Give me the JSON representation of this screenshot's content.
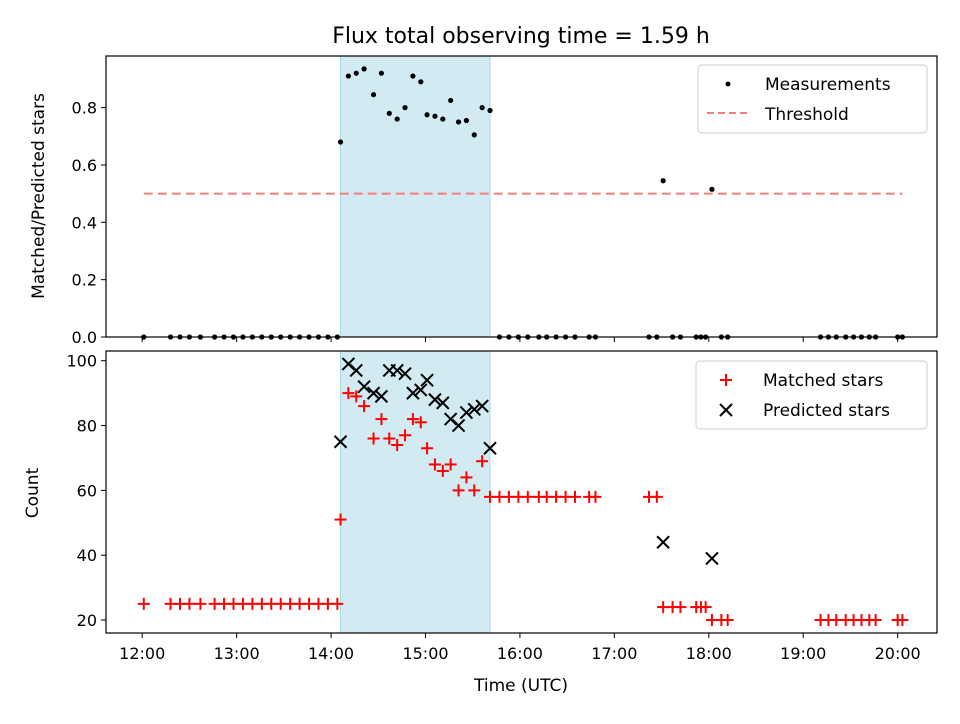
{
  "chart_data": [
    {
      "type": "scatter",
      "title": "Flux total observing time = 1.59 h",
      "xlabel": "",
      "ylabel": "Matched/Predicted stars",
      "xlim": [
        "11:37",
        "20:25"
      ],
      "ylim": [
        0.0,
        0.98
      ],
      "yticks": [
        0.0,
        0.2,
        0.4,
        0.6,
        0.8
      ],
      "ytick_labels": [
        "0.0",
        "0.2",
        "0.4",
        "0.6",
        "0.8"
      ],
      "grid": false,
      "legend_position": "upper right",
      "shaded_region": {
        "x_start": "14:06",
        "x_end": "15:41",
        "color": "#add8e6"
      },
      "series": [
        {
          "name": "Measurements",
          "marker": "dot",
          "color": "#000000",
          "points": [
            {
              "x": "12:01",
              "y": 0
            },
            {
              "x": "12:18",
              "y": 0
            },
            {
              "x": "12:24",
              "y": 0
            },
            {
              "x": "12:30",
              "y": 0
            },
            {
              "x": "12:37",
              "y": 0
            },
            {
              "x": "12:46",
              "y": 0
            },
            {
              "x": "12:52",
              "y": 0
            },
            {
              "x": "12:58",
              "y": 0
            },
            {
              "x": "13:04",
              "y": 0
            },
            {
              "x": "13:10",
              "y": 0
            },
            {
              "x": "13:16",
              "y": 0
            },
            {
              "x": "13:22",
              "y": 0
            },
            {
              "x": "13:28",
              "y": 0
            },
            {
              "x": "13:34",
              "y": 0
            },
            {
              "x": "13:40",
              "y": 0
            },
            {
              "x": "13:46",
              "y": 0
            },
            {
              "x": "13:52",
              "y": 0
            },
            {
              "x": "13:58",
              "y": 0
            },
            {
              "x": "14:04",
              "y": 0
            },
            {
              "x": "14:06",
              "y": 0.68
            },
            {
              "x": "14:11",
              "y": 0.91
            },
            {
              "x": "14:16",
              "y": 0.92
            },
            {
              "x": "14:21",
              "y": 0.935
            },
            {
              "x": "14:27",
              "y": 0.845
            },
            {
              "x": "14:32",
              "y": 0.92
            },
            {
              "x": "14:37",
              "y": 0.78
            },
            {
              "x": "14:42",
              "y": 0.76
            },
            {
              "x": "14:47",
              "y": 0.8
            },
            {
              "x": "14:52",
              "y": 0.91
            },
            {
              "x": "14:57",
              "y": 0.89
            },
            {
              "x": "15:01",
              "y": 0.775
            },
            {
              "x": "15:06",
              "y": 0.77
            },
            {
              "x": "15:11",
              "y": 0.76
            },
            {
              "x": "15:16",
              "y": 0.825
            },
            {
              "x": "15:21",
              "y": 0.75
            },
            {
              "x": "15:26",
              "y": 0.755
            },
            {
              "x": "15:31",
              "y": 0.705
            },
            {
              "x": "15:36",
              "y": 0.8
            },
            {
              "x": "15:41",
              "y": 0.79
            },
            {
              "x": "15:47",
              "y": 0
            },
            {
              "x": "15:53",
              "y": 0
            },
            {
              "x": "15:59",
              "y": 0
            },
            {
              "x": "16:05",
              "y": 0
            },
            {
              "x": "16:12",
              "y": 0
            },
            {
              "x": "16:17",
              "y": 0
            },
            {
              "x": "16:23",
              "y": 0
            },
            {
              "x": "16:29",
              "y": 0
            },
            {
              "x": "16:35",
              "y": 0
            },
            {
              "x": "16:44",
              "y": 0
            },
            {
              "x": "16:48",
              "y": 0
            },
            {
              "x": "17:22",
              "y": 0
            },
            {
              "x": "17:27",
              "y": 0
            },
            {
              "x": "17:37",
              "y": 0
            },
            {
              "x": "17:42",
              "y": 0
            },
            {
              "x": "17:52",
              "y": 0
            },
            {
              "x": "17:55",
              "y": 0
            },
            {
              "x": "17:58",
              "y": 0
            },
            {
              "x": "18:08",
              "y": 0
            },
            {
              "x": "18:12",
              "y": 0
            },
            {
              "x": "17:31",
              "y": 0.545
            },
            {
              "x": "18:02",
              "y": 0.515
            },
            {
              "x": "19:11",
              "y": 0
            },
            {
              "x": "19:16",
              "y": 0
            },
            {
              "x": "19:21",
              "y": 0
            },
            {
              "x": "19:27",
              "y": 0
            },
            {
              "x": "19:32",
              "y": 0
            },
            {
              "x": "19:37",
              "y": 0
            },
            {
              "x": "19:42",
              "y": 0
            },
            {
              "x": "19:46",
              "y": 0
            },
            {
              "x": "20:00",
              "y": 0
            },
            {
              "x": "20:03",
              "y": 0
            }
          ]
        },
        {
          "name": "Threshold",
          "marker": "dashed-line",
          "color": "#f08080",
          "points": [
            {
              "x": "12:01",
              "y": 0.5
            },
            {
              "x": "20:03",
              "y": 0.5
            }
          ]
        }
      ]
    },
    {
      "type": "scatter",
      "title": "",
      "xlabel": "Time (UTC)",
      "ylabel": "Count",
      "xlim": [
        "11:37",
        "20:25"
      ],
      "ylim": [
        16,
        103
      ],
      "yticks": [
        20,
        40,
        60,
        80,
        100
      ],
      "ytick_labels": [
        "20",
        "40",
        "60",
        "80",
        "100"
      ],
      "xticks": [
        "12:00",
        "13:00",
        "14:00",
        "15:00",
        "16:00",
        "17:00",
        "18:00",
        "19:00",
        "20:00"
      ],
      "grid": false,
      "legend_position": "upper right",
      "shaded_region": {
        "x_start": "14:06",
        "x_end": "15:41",
        "color": "#add8e6"
      },
      "series": [
        {
          "name": "Matched stars",
          "marker": "plus",
          "color": "#ff0000",
          "points": [
            {
              "x": "12:01",
              "y": 25
            },
            {
              "x": "12:18",
              "y": 25
            },
            {
              "x": "12:24",
              "y": 25
            },
            {
              "x": "12:30",
              "y": 25
            },
            {
              "x": "12:37",
              "y": 25
            },
            {
              "x": "12:46",
              "y": 25
            },
            {
              "x": "12:52",
              "y": 25
            },
            {
              "x": "12:58",
              "y": 25
            },
            {
              "x": "13:04",
              "y": 25
            },
            {
              "x": "13:10",
              "y": 25
            },
            {
              "x": "13:16",
              "y": 25
            },
            {
              "x": "13:22",
              "y": 25
            },
            {
              "x": "13:28",
              "y": 25
            },
            {
              "x": "13:34",
              "y": 25
            },
            {
              "x": "13:40",
              "y": 25
            },
            {
              "x": "13:46",
              "y": 25
            },
            {
              "x": "13:52",
              "y": 25
            },
            {
              "x": "13:58",
              "y": 25
            },
            {
              "x": "14:04",
              "y": 25
            },
            {
              "x": "14:06",
              "y": 51
            },
            {
              "x": "14:11",
              "y": 90
            },
            {
              "x": "14:16",
              "y": 89
            },
            {
              "x": "14:21",
              "y": 86
            },
            {
              "x": "14:27",
              "y": 76
            },
            {
              "x": "14:32",
              "y": 82
            },
            {
              "x": "14:37",
              "y": 76
            },
            {
              "x": "14:42",
              "y": 74
            },
            {
              "x": "14:47",
              "y": 77
            },
            {
              "x": "14:52",
              "y": 82
            },
            {
              "x": "14:57",
              "y": 81
            },
            {
              "x": "15:01",
              "y": 73
            },
            {
              "x": "15:06",
              "y": 68
            },
            {
              "x": "15:11",
              "y": 66
            },
            {
              "x": "15:16",
              "y": 68
            },
            {
              "x": "15:21",
              "y": 60
            },
            {
              "x": "15:26",
              "y": 64
            },
            {
              "x": "15:31",
              "y": 60
            },
            {
              "x": "15:36",
              "y": 69
            },
            {
              "x": "15:41",
              "y": 58
            },
            {
              "x": "15:47",
              "y": 58
            },
            {
              "x": "15:53",
              "y": 58
            },
            {
              "x": "15:59",
              "y": 58
            },
            {
              "x": "16:05",
              "y": 58
            },
            {
              "x": "16:12",
              "y": 58
            },
            {
              "x": "16:17",
              "y": 58
            },
            {
              "x": "16:23",
              "y": 58
            },
            {
              "x": "16:29",
              "y": 58
            },
            {
              "x": "16:35",
              "y": 58
            },
            {
              "x": "16:44",
              "y": 58
            },
            {
              "x": "16:48",
              "y": 58
            },
            {
              "x": "17:22",
              "y": 58
            },
            {
              "x": "17:27",
              "y": 58
            },
            {
              "x": "17:31",
              "y": 24
            },
            {
              "x": "17:37",
              "y": 24
            },
            {
              "x": "17:42",
              "y": 24
            },
            {
              "x": "17:52",
              "y": 24
            },
            {
              "x": "17:55",
              "y": 24
            },
            {
              "x": "17:58",
              "y": 24
            },
            {
              "x": "18:02",
              "y": 20
            },
            {
              "x": "18:08",
              "y": 20
            },
            {
              "x": "18:12",
              "y": 20
            },
            {
              "x": "19:11",
              "y": 20
            },
            {
              "x": "19:16",
              "y": 20
            },
            {
              "x": "19:21",
              "y": 20
            },
            {
              "x": "19:27",
              "y": 20
            },
            {
              "x": "19:32",
              "y": 20
            },
            {
              "x": "19:37",
              "y": 20
            },
            {
              "x": "19:42",
              "y": 20
            },
            {
              "x": "19:46",
              "y": 20
            },
            {
              "x": "20:00",
              "y": 20
            },
            {
              "x": "20:03",
              "y": 20
            }
          ]
        },
        {
          "name": "Predicted stars",
          "marker": "x",
          "color": "#000000",
          "points": [
            {
              "x": "14:06",
              "y": 75
            },
            {
              "x": "14:11",
              "y": 99
            },
            {
              "x": "14:16",
              "y": 97
            },
            {
              "x": "14:21",
              "y": 92
            },
            {
              "x": "14:27",
              "y": 90
            },
            {
              "x": "14:32",
              "y": 89
            },
            {
              "x": "14:37",
              "y": 97
            },
            {
              "x": "14:42",
              "y": 97
            },
            {
              "x": "14:47",
              "y": 96
            },
            {
              "x": "14:52",
              "y": 90
            },
            {
              "x": "14:57",
              "y": 91
            },
            {
              "x": "15:01",
              "y": 94
            },
            {
              "x": "15:06",
              "y": 88
            },
            {
              "x": "15:11",
              "y": 87
            },
            {
              "x": "15:16",
              "y": 82
            },
            {
              "x": "15:21",
              "y": 80
            },
            {
              "x": "15:26",
              "y": 84
            },
            {
              "x": "15:31",
              "y": 85
            },
            {
              "x": "15:36",
              "y": 86
            },
            {
              "x": "15:41",
              "y": 73
            },
            {
              "x": "17:31",
              "y": 44
            },
            {
              "x": "18:02",
              "y": 39
            }
          ]
        }
      ]
    }
  ]
}
